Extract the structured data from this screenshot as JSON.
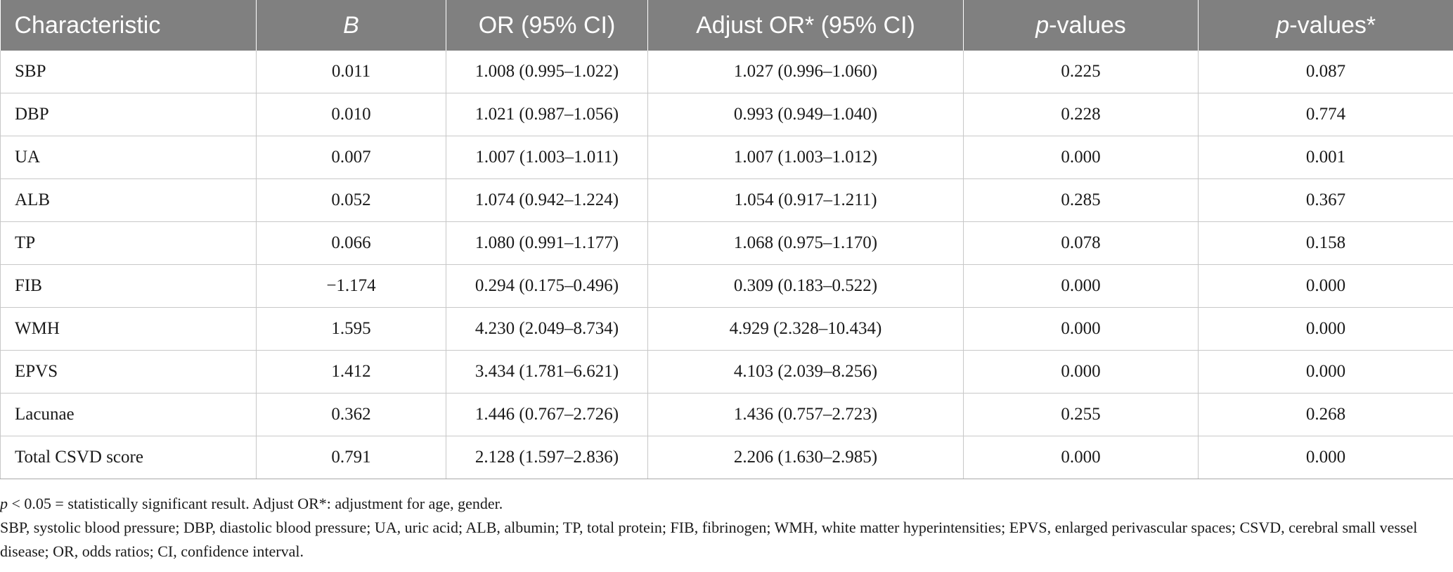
{
  "table": {
    "headers": [
      {
        "pre": "Characteristic",
        "it": "",
        "post": ""
      },
      {
        "pre": "",
        "it": "B",
        "post": ""
      },
      {
        "pre": "OR (95% CI)",
        "it": "",
        "post": ""
      },
      {
        "pre": "Adjust OR* (95% CI)",
        "it": "",
        "post": ""
      },
      {
        "pre": "",
        "it": "p",
        "post": "-values"
      },
      {
        "pre": "",
        "it": "p",
        "post": "-values*"
      }
    ],
    "rows": [
      [
        "SBP",
        "0.011",
        "1.008 (0.995–1.022)",
        "1.027 (0.996–1.060)",
        "0.225",
        "0.087"
      ],
      [
        "DBP",
        "0.010",
        "1.021 (0.987–1.056)",
        "0.993 (0.949–1.040)",
        "0.228",
        "0.774"
      ],
      [
        "UA",
        "0.007",
        "1.007 (1.003–1.011)",
        "1.007 (1.003–1.012)",
        "0.000",
        "0.001"
      ],
      [
        "ALB",
        "0.052",
        "1.074 (0.942–1.224)",
        "1.054 (0.917–1.211)",
        "0.285",
        "0.367"
      ],
      [
        "TP",
        "0.066",
        "1.080 (0.991–1.177)",
        "1.068 (0.975–1.170)",
        "0.078",
        "0.158"
      ],
      [
        "FIB",
        "−1.174",
        "0.294 (0.175–0.496)",
        "0.309 (0.183–0.522)",
        "0.000",
        "0.000"
      ],
      [
        "WMH",
        "1.595",
        "4.230 (2.049–8.734)",
        "4.929 (2.328–10.434)",
        "0.000",
        "0.000"
      ],
      [
        "EPVS",
        "1.412",
        "3.434 (1.781–6.621)",
        "4.103 (2.039–8.256)",
        "0.000",
        "0.000"
      ],
      [
        "Lacunae",
        "0.362",
        "1.446 (0.767–2.726)",
        "1.436 (0.757–2.723)",
        "0.255",
        "0.268"
      ],
      [
        "Total CSVD score",
        "0.791",
        "2.128 (1.597–2.836)",
        "2.206 (1.630–2.985)",
        "0.000",
        "0.000"
      ]
    ]
  },
  "notes": {
    "line1_italic": "p",
    "line1_rest": " < 0.05 = statistically significant result. Adjust OR*: adjustment for age, gender.",
    "line2": "SBP, systolic blood pressure; DBP, diastolic blood pressure; UA, uric acid; ALB, albumin; TP, total protein; FIB, fibrinogen; WMH, white matter hyperintensities; EPVS, enlarged perivascular spaces; CSVD, cerebral small vessel disease; OR, odds ratios; CI, confidence interval."
  }
}
